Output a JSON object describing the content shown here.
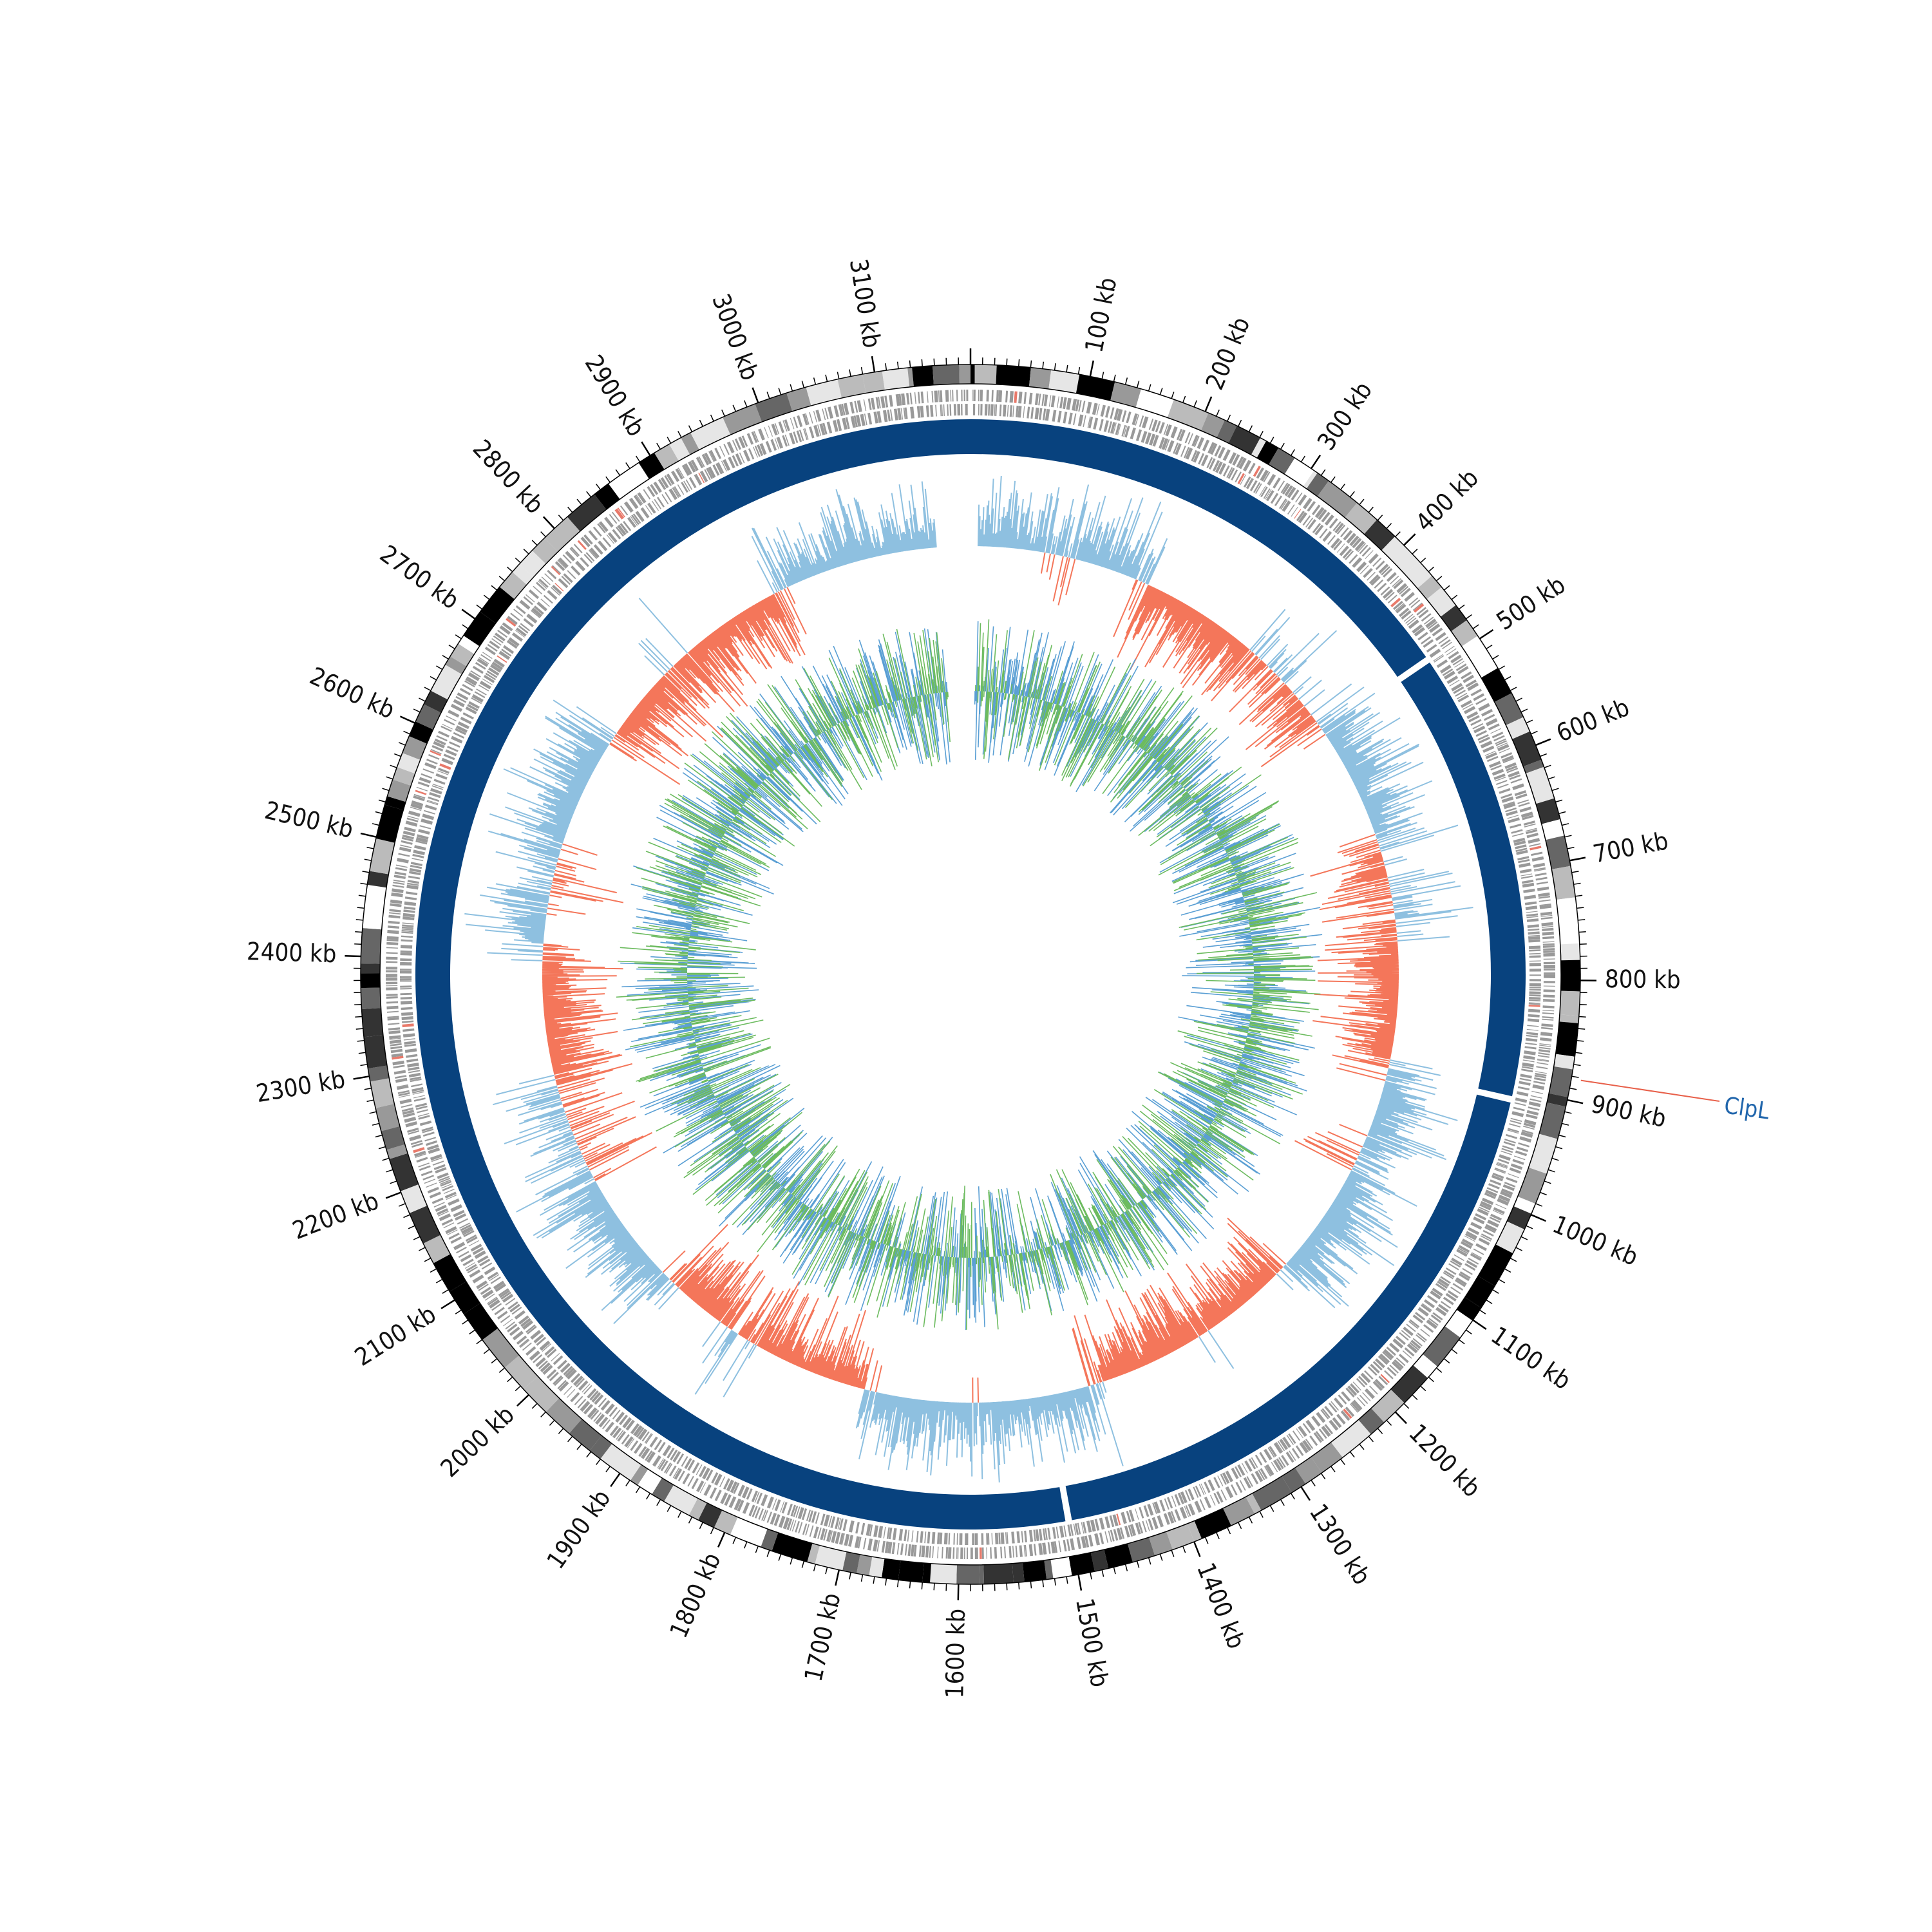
{
  "genome": {
    "length_kb": 3180,
    "tick_labels": [
      {
        "kb": 100,
        "label": "100 kb"
      },
      {
        "kb": 200,
        "label": "200 kb"
      },
      {
        "kb": 300,
        "label": "300 kb"
      },
      {
        "kb": 400,
        "label": "400 kb"
      },
      {
        "kb": 500,
        "label": "500 kb"
      },
      {
        "kb": 600,
        "label": "600 kb"
      },
      {
        "kb": 700,
        "label": "700 kb"
      },
      {
        "kb": 800,
        "label": "800 kb"
      },
      {
        "kb": 900,
        "label": "900 kb"
      },
      {
        "kb": 1000,
        "label": "1000 kb"
      },
      {
        "kb": 1100,
        "label": "1100 kb"
      },
      {
        "kb": 1200,
        "label": "1200 kb"
      },
      {
        "kb": 1300,
        "label": "1300 kb"
      },
      {
        "kb": 1400,
        "label": "1400 kb"
      },
      {
        "kb": 1500,
        "label": "1500 kb"
      },
      {
        "kb": 1600,
        "label": "1600 kb"
      },
      {
        "kb": 1700,
        "label": "1700 kb"
      },
      {
        "kb": 1800,
        "label": "1800 kb"
      },
      {
        "kb": 1900,
        "label": "1900 kb"
      },
      {
        "kb": 2000,
        "label": "2000 kb"
      },
      {
        "kb": 2100,
        "label": "2100 kb"
      },
      {
        "kb": 2200,
        "label": "2200 kb"
      },
      {
        "kb": 2300,
        "label": "2300 kb"
      },
      {
        "kb": 2400,
        "label": "2400 kb"
      },
      {
        "kb": 2500,
        "label": "2500 kb"
      },
      {
        "kb": 2600,
        "label": "2600 kb"
      },
      {
        "kb": 2700,
        "label": "2700 kb"
      },
      {
        "kb": 2800,
        "label": "2800 kb"
      },
      {
        "kb": 2900,
        "label": "2900 kb"
      },
      {
        "kb": 3000,
        "label": "3000 kb"
      },
      {
        "kb": 3100,
        "label": "3100 kb"
      }
    ]
  },
  "annotation": {
    "label": "ClpL",
    "position_kb": 882,
    "color": "#2166ac",
    "line_color": "#e8604a"
  },
  "tracks": {
    "karyotype_colors": [
      "#000000",
      "#333333",
      "#666666",
      "#999999",
      "#bbbbbb",
      "#e6e6e6",
      "#ffffff"
    ],
    "gene_color": "#999999",
    "gene_highlight_color": "#e8796a",
    "backbone_color": "#08427e",
    "backbone_gaps_kb": [
      490,
      910,
      1500
    ],
    "gc_skew_positive_color": "#8ec0e0",
    "gc_skew_negative_color": "#f4765a",
    "gc_content_blue_color": "#5a9fd4",
    "gc_content_green_color": "#6cbb5f",
    "gc_skew_gap_kb": [
      3140,
      3180
    ]
  }
}
